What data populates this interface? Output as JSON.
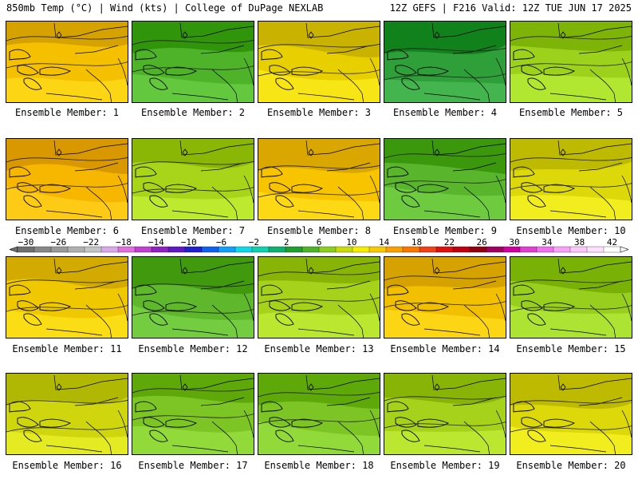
{
  "header": {
    "left_title": "850mb Temp (°C) | Wind (kts) | College of DuPage NEXLAB",
    "right_title": "12Z GEFS | F216 Valid: 12Z TUE JUN 17 2025"
  },
  "panel_label_prefix": "Ensemble Member: ",
  "members": [
    {
      "label": "Ensemble Member: 1",
      "base": "#f4c000"
    },
    {
      "label": "Ensemble Member: 2",
      "base": "#4fb32a"
    },
    {
      "label": "Ensemble Member: 3",
      "base": "#e8d000"
    },
    {
      "label": "Ensemble Member: 4",
      "base": "#2f9f3a"
    },
    {
      "label": "Ensemble Member: 5",
      "base": "#9cd21c"
    },
    {
      "label": "Ensemble Member: 6",
      "base": "#f7b600"
    },
    {
      "label": "Ensemble Member: 7",
      "base": "#a8d41a"
    },
    {
      "label": "Ensemble Member: 8",
      "base": "#f8c400"
    },
    {
      "label": "Ensemble Member: 9",
      "base": "#59b52b"
    },
    {
      "label": "Ensemble Member: 10",
      "base": "#dcd80a"
    },
    {
      "label": "Ensemble Member: 11",
      "base": "#f0c800"
    },
    {
      "label": "Ensemble Member: 12",
      "base": "#5fb82c"
    },
    {
      "label": "Ensemble Member: 13",
      "base": "#a6d21c"
    },
    {
      "label": "Ensemble Member: 14",
      "base": "#f3c000"
    },
    {
      "label": "Ensemble Member: 15",
      "base": "#98cf1e"
    },
    {
      "label": "Ensemble Member: 16",
      "base": "#cfd60e"
    },
    {
      "label": "Ensemble Member: 17",
      "base": "#7cc525"
    },
    {
      "label": "Ensemble Member: 18",
      "base": "#7cc525"
    },
    {
      "label": "Ensemble Member: 19",
      "base": "#a6d21c"
    },
    {
      "label": "Ensemble Member: 20",
      "base": "#dcd80a"
    }
  ],
  "colorbar": {
    "ticks": [
      "−30",
      "−26",
      "−22",
      "−18",
      "−14",
      "−10",
      "−6",
      "−2",
      "2",
      "6",
      "10",
      "14",
      "18",
      "22",
      "26",
      "30",
      "34",
      "38",
      "42"
    ],
    "colors": [
      "#707070",
      "#888888",
      "#9a9a9a",
      "#b0b0b0",
      "#c4c4c4",
      "#d8a8e8",
      "#e070e0",
      "#c040d0",
      "#9020c0",
      "#6018c0",
      "#2020d0",
      "#1060f0",
      "#10a0f8",
      "#10d8e8",
      "#10d0b0",
      "#10b070",
      "#209e30",
      "#4fb32a",
      "#8cce20",
      "#c8dc0a",
      "#f6ee00",
      "#f8c800",
      "#f8a000",
      "#f87800",
      "#f04018",
      "#e01010",
      "#c00010",
      "#900010",
      "#a00060",
      "#d000a0",
      "#e040d0",
      "#f070f0",
      "#f8a0f8",
      "#fcc8fc",
      "#fde0fd",
      "#ffffff"
    ]
  }
}
